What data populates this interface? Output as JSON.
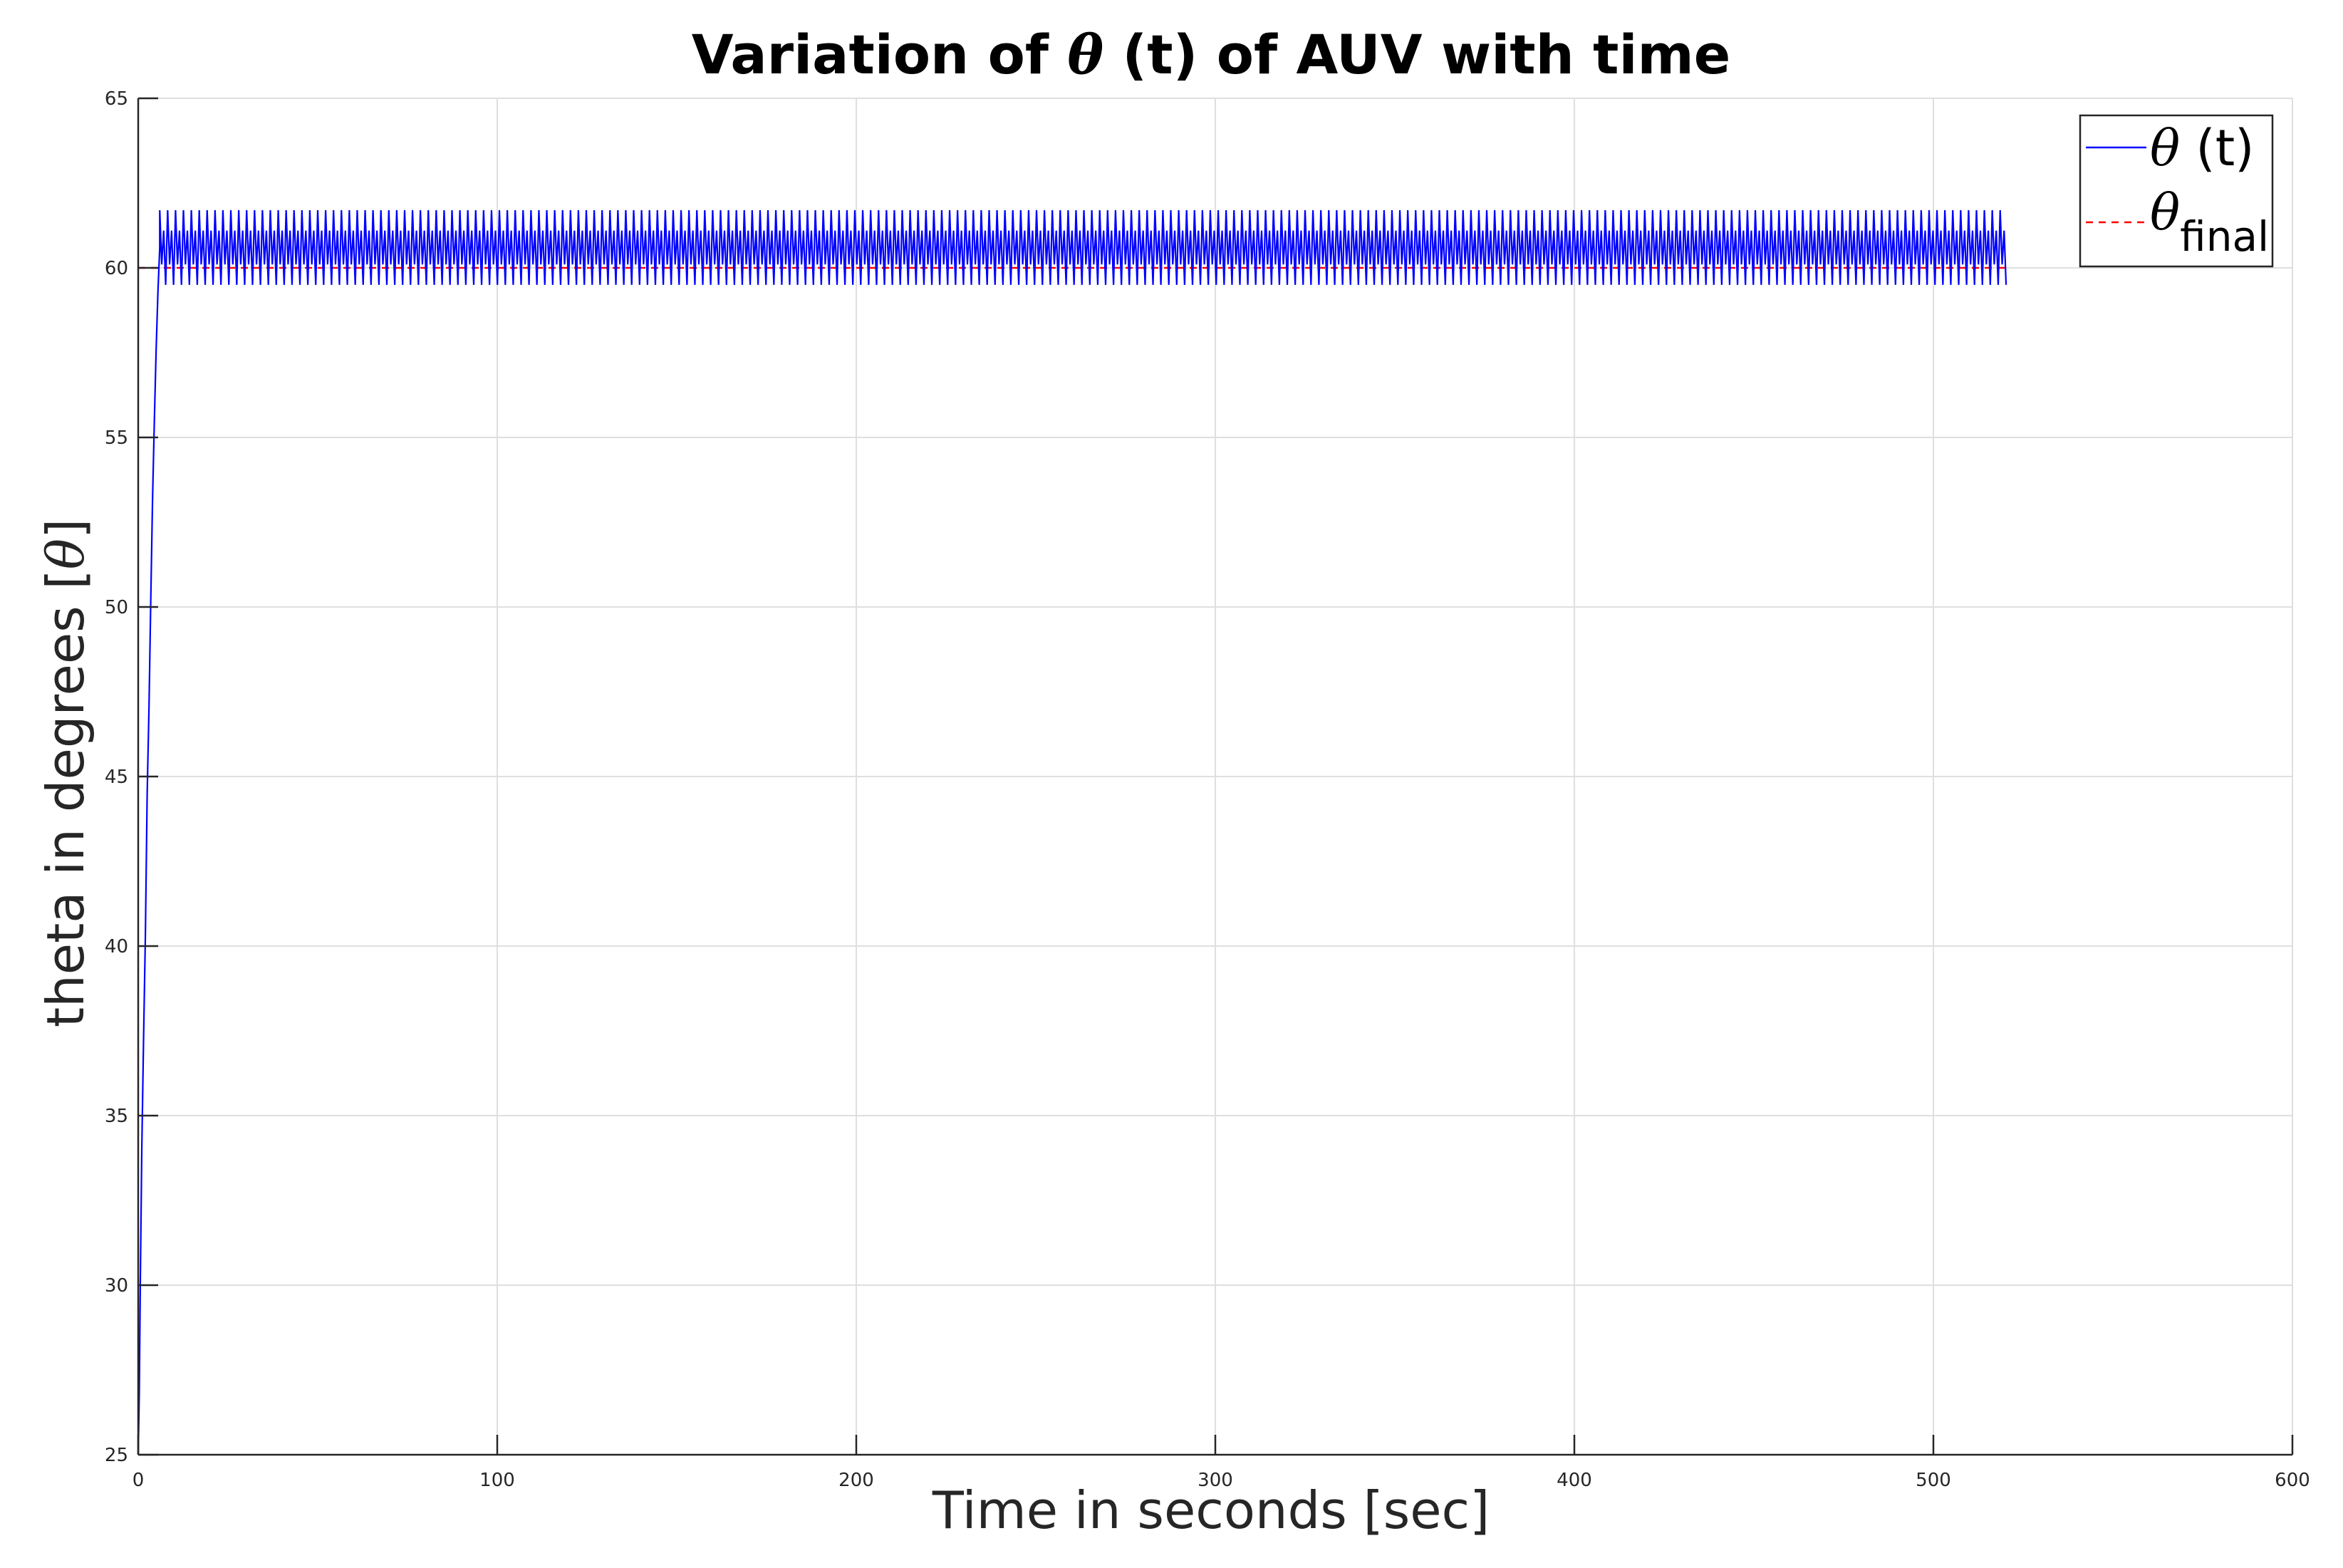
{
  "chart_data": {
    "type": "line",
    "title": {
      "prefix": "Variation of ",
      "symbol": "θ",
      "suffix": " (t) of AUV with time"
    },
    "xlabel": "Time in seconds [sec]",
    "ylabel": {
      "prefix": "theta in degrees [",
      "symbol": "θ",
      "suffix": "]"
    },
    "xlim": [
      0,
      600
    ],
    "ylim": [
      25,
      65
    ],
    "xticks": [
      0,
      100,
      200,
      300,
      400,
      500,
      600
    ],
    "yticks": [
      25,
      30,
      35,
      40,
      45,
      50,
      55,
      60,
      65
    ],
    "xtick_labels": [
      "0",
      "100",
      "200",
      "300",
      "400",
      "500",
      "600"
    ],
    "ytick_labels": [
      "25",
      "30",
      "35",
      "40",
      "45",
      "50",
      "55",
      "60",
      "65"
    ],
    "grid": true,
    "legend_position": "top-right",
    "series": [
      {
        "name": "θ (t)",
        "legend_symbol": "θ",
        "legend_suffix": " (t)",
        "color": "#0000ff",
        "style": "solid",
        "rise": {
          "x": [
            0,
            0.3,
            0.6,
            1.0,
            1.5,
            2.0,
            2.5,
            3.0,
            3.5,
            4.0,
            4.5,
            5.0,
            5.5,
            6.0
          ],
          "y": [
            25,
            26.8,
            30.2,
            34,
            37.3,
            40.3,
            44.5,
            47,
            50.2,
            53.2,
            55.5,
            57.6,
            59.3,
            60.6
          ]
        },
        "oscillation": {
          "x_start": 6.0,
          "x_end": 520.5,
          "period": 2.2,
          "min": 59.5,
          "max": 61.7,
          "inner_min": 60.1,
          "inner_max": 61.1
        }
      },
      {
        "name": "θfinal",
        "legend_symbol": "θ",
        "legend_subscript": "final",
        "color": "#ff0000",
        "style": "dashed",
        "x": [
          0,
          520.5
        ],
        "y": [
          60,
          60
        ]
      }
    ]
  }
}
